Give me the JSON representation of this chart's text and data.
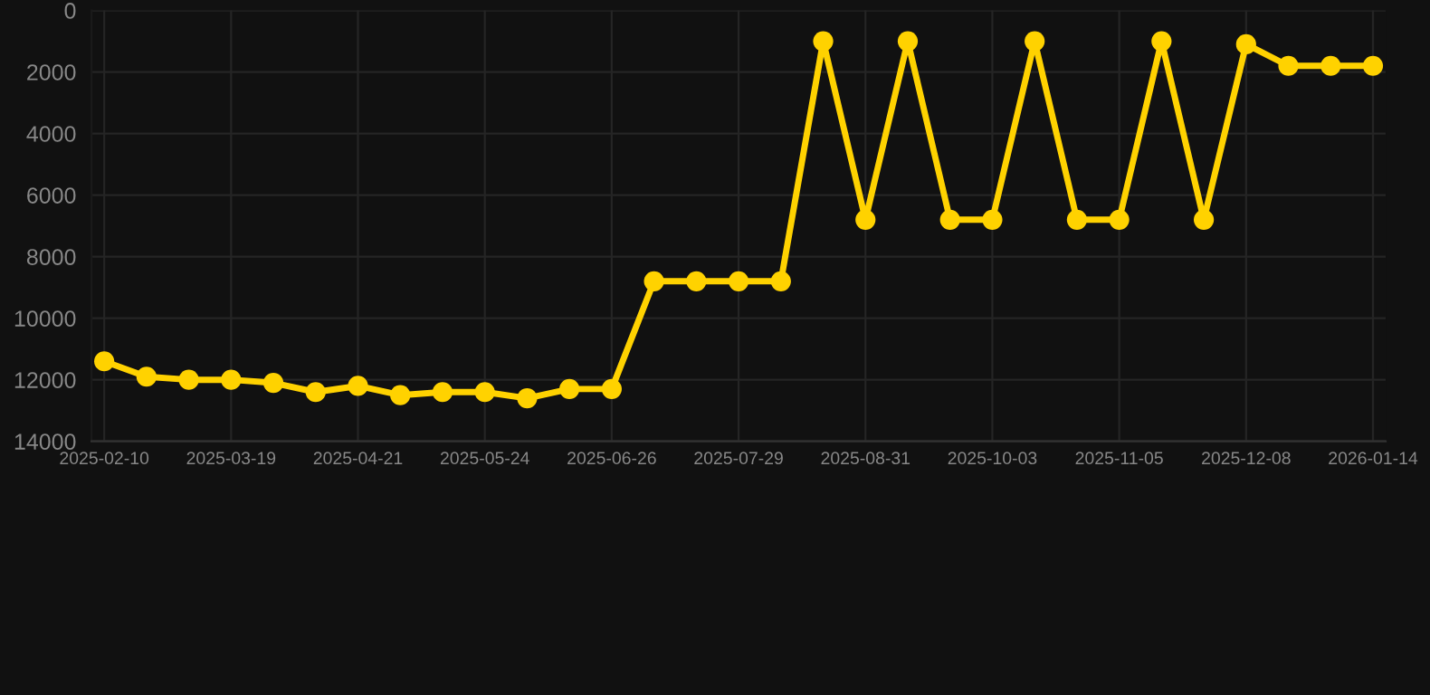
{
  "chart_data": {
    "type": "line",
    "categories": [
      "2025-02-10",
      null,
      null,
      "2025-03-19",
      null,
      null,
      "2025-04-21",
      null,
      null,
      "2025-05-24",
      null,
      null,
      "2025-06-26",
      null,
      null,
      "2025-07-29",
      null,
      null,
      "2025-08-31",
      null,
      null,
      "2025-10-03",
      null,
      null,
      "2025-11-05",
      null,
      null,
      "2025-12-08",
      null,
      null,
      "2026-01-14"
    ],
    "series": [
      {
        "color": "#ffd200",
        "values": [
          11400,
          11900,
          12000,
          12000,
          12100,
          12400,
          12200,
          12500,
          12400,
          12400,
          12600,
          12300,
          12300,
          8800,
          8800,
          8800,
          8800,
          1000,
          6800,
          1000,
          6800,
          6800,
          1000,
          6800,
          6800,
          1000,
          6800,
          1100,
          1800,
          1800,
          1800
        ]
      }
    ],
    "ylim": [
      14000,
      0
    ],
    "yticks": [
      0,
      2000,
      4000,
      6000,
      8000,
      10000,
      12000,
      14000
    ],
    "grid": true,
    "marker": "circle",
    "line_style": "solid"
  }
}
